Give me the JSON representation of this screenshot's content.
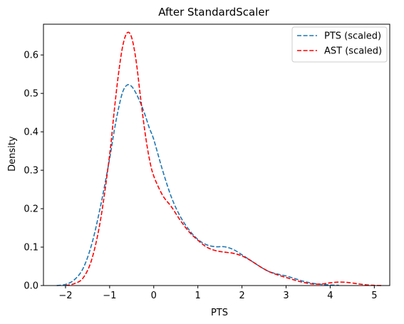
{
  "chart_data": {
    "type": "line",
    "title": "After StandardScaler",
    "xlabel": "PTS",
    "ylabel": "Density",
    "xlim": [
      -2.5,
      5.35
    ],
    "ylim": [
      0,
      0.68
    ],
    "xticks": [
      -2,
      -1,
      0,
      1,
      2,
      3,
      4,
      5
    ],
    "yticks": [
      0.0,
      0.1,
      0.2,
      0.3,
      0.4,
      0.5,
      0.6
    ],
    "grid": false,
    "legend_position": "top-right",
    "series": [
      {
        "name": "PTS (scaled)",
        "color": "#1f77b4",
        "style": "dashed",
        "points": [
          [
            -2.2,
            0.0
          ],
          [
            -2.0,
            0.003
          ],
          [
            -1.8,
            0.015
          ],
          [
            -1.6,
            0.045
          ],
          [
            -1.4,
            0.11
          ],
          [
            -1.2,
            0.21
          ],
          [
            -1.0,
            0.33
          ],
          [
            -0.9,
            0.4
          ],
          [
            -0.8,
            0.46
          ],
          [
            -0.7,
            0.505
          ],
          [
            -0.6,
            0.522
          ],
          [
            -0.5,
            0.518
          ],
          [
            -0.4,
            0.5
          ],
          [
            -0.3,
            0.475
          ],
          [
            -0.2,
            0.445
          ],
          [
            -0.1,
            0.41
          ],
          [
            0.0,
            0.38
          ],
          [
            0.2,
            0.3
          ],
          [
            0.4,
            0.23
          ],
          [
            0.6,
            0.18
          ],
          [
            0.8,
            0.145
          ],
          [
            1.0,
            0.12
          ],
          [
            1.2,
            0.106
          ],
          [
            1.4,
            0.101
          ],
          [
            1.6,
            0.101
          ],
          [
            1.8,
            0.094
          ],
          [
            2.0,
            0.08
          ],
          [
            2.2,
            0.065
          ],
          [
            2.4,
            0.05
          ],
          [
            2.6,
            0.037
          ],
          [
            2.8,
            0.03
          ],
          [
            3.0,
            0.025
          ],
          [
            3.2,
            0.018
          ],
          [
            3.4,
            0.011
          ],
          [
            3.6,
            0.006
          ],
          [
            3.8,
            0.003
          ],
          [
            4.0,
            0.0015
          ],
          [
            4.2,
            0.0005
          ]
        ]
      },
      {
        "name": "AST (scaled)",
        "color": "#ff0000",
        "style": "dashed",
        "points": [
          [
            -2.0,
            0.0
          ],
          [
            -1.8,
            0.005
          ],
          [
            -1.6,
            0.02
          ],
          [
            -1.4,
            0.07
          ],
          [
            -1.2,
            0.175
          ],
          [
            -1.0,
            0.34
          ],
          [
            -0.9,
            0.45
          ],
          [
            -0.8,
            0.55
          ],
          [
            -0.7,
            0.625
          ],
          [
            -0.6,
            0.658
          ],
          [
            -0.5,
            0.645
          ],
          [
            -0.4,
            0.585
          ],
          [
            -0.3,
            0.49
          ],
          [
            -0.2,
            0.4
          ],
          [
            -0.1,
            0.33
          ],
          [
            0.0,
            0.285
          ],
          [
            0.2,
            0.235
          ],
          [
            0.4,
            0.205
          ],
          [
            0.6,
            0.17
          ],
          [
            0.8,
            0.14
          ],
          [
            1.0,
            0.118
          ],
          [
            1.2,
            0.1
          ],
          [
            1.4,
            0.091
          ],
          [
            1.6,
            0.087
          ],
          [
            1.8,
            0.084
          ],
          [
            2.0,
            0.077
          ],
          [
            2.2,
            0.065
          ],
          [
            2.4,
            0.05
          ],
          [
            2.6,
            0.037
          ],
          [
            2.8,
            0.028
          ],
          [
            3.0,
            0.021
          ],
          [
            3.2,
            0.014
          ],
          [
            3.4,
            0.008
          ],
          [
            3.6,
            0.004
          ],
          [
            3.8,
            0.004
          ],
          [
            4.0,
            0.007
          ],
          [
            4.2,
            0.009
          ],
          [
            4.4,
            0.008
          ],
          [
            4.6,
            0.005
          ],
          [
            4.8,
            0.002
          ],
          [
            5.0,
            0.0005
          ],
          [
            5.2,
            0.0
          ]
        ]
      }
    ]
  }
}
